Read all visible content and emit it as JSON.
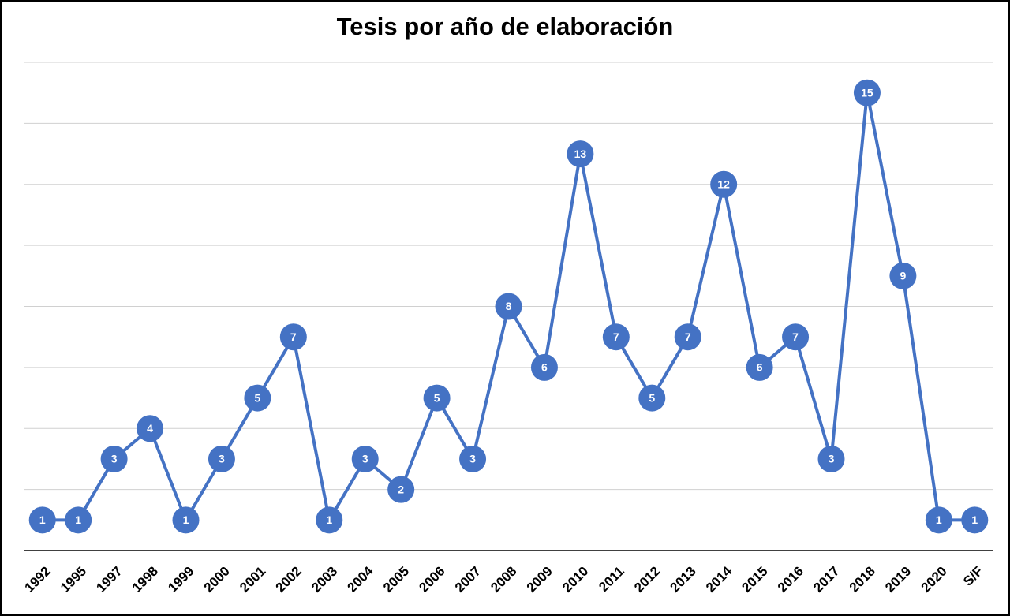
{
  "chart_data": {
    "type": "line",
    "title": "Tesis por año de elaboración",
    "categories": [
      "1992",
      "1995",
      "1997",
      "1998",
      "1999",
      "2000",
      "2001",
      "2002",
      "2003",
      "2004",
      "2005",
      "2006",
      "2007",
      "2008",
      "2009",
      "2010",
      "2011",
      "2012",
      "2013",
      "2014",
      "2015",
      "2016",
      "2017",
      "2018",
      "2019",
      "2020",
      "S/F"
    ],
    "values": [
      1,
      1,
      3,
      4,
      1,
      3,
      5,
      7,
      1,
      3,
      2,
      5,
      3,
      8,
      6,
      13,
      7,
      5,
      7,
      12,
      6,
      7,
      3,
      15,
      9,
      1,
      1
    ],
    "color": "#4472c4",
    "ylim": [
      0,
      16
    ],
    "yticks": [
      0,
      2,
      4,
      6,
      8,
      10,
      12,
      14,
      16
    ],
    "grid": true
  }
}
